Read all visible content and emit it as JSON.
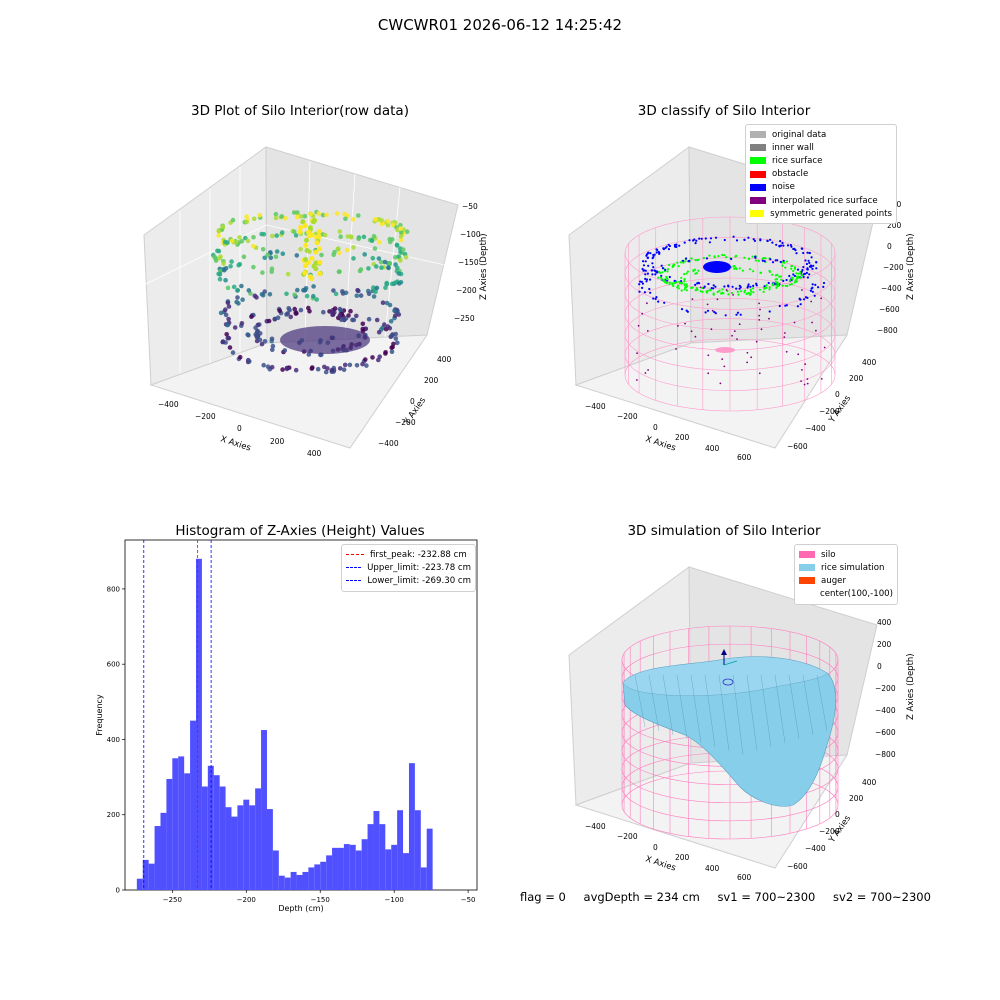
{
  "suptitle": "CWCWR01 2026-06-12 14:25:42",
  "chart_data": [
    {
      "type": "scatter",
      "projection": "3d",
      "title": "3D Plot of Silo Interior(row data)",
      "xlabel": "X Axies",
      "ylabel": "Y Axies",
      "zlabel": "Z Axies (Depth)",
      "xticks": [
        "−400",
        "−200",
        "0",
        "200",
        "400"
      ],
      "yticks": [
        "−400",
        "−200",
        "0",
        "200",
        "400"
      ],
      "zticks": [
        "−50",
        "−100",
        "−150",
        "−200",
        "−250"
      ],
      "zlim": [
        -270,
        -45
      ],
      "colormap": "viridis"
    },
    {
      "type": "scatter",
      "projection": "3d",
      "title": "3D classify of Silo Interior",
      "xlabel": "X Axies",
      "ylabel": "Y Axies",
      "zlabel": "Z Axies (Depth)",
      "xticks": [
        "−400",
        "−200",
        "0",
        "200",
        "400",
        "600"
      ],
      "yticks": [
        "−600",
        "−400",
        "−200",
        "0",
        "200",
        "400"
      ],
      "zticks": [
        "400",
        "200",
        "0",
        "−200",
        "−400",
        "−600",
        "−800"
      ],
      "legend_position": "upper-right",
      "legend": [
        {
          "label": "original data",
          "color": "#b0b0b0"
        },
        {
          "label": "inner wall",
          "color": "#808080"
        },
        {
          "label": "rice surface",
          "color": "#00ff00"
        },
        {
          "label": "obstacle",
          "color": "#ff0000"
        },
        {
          "label": "noise",
          "color": "#0000ff"
        },
        {
          "label": "interpolated rice surface",
          "color": "#800080"
        },
        {
          "label": "symmetric generated points",
          "color": "#ffff00"
        }
      ]
    },
    {
      "type": "bar",
      "title": "Histogram of Z-Axies (Height) Values",
      "xlabel": "Depth (cm)",
      "ylabel": "Frequency",
      "xlim": [
        -282,
        -44
      ],
      "ylim": [
        0,
        930
      ],
      "xticks": [
        -250,
        -200,
        -150,
        -100,
        -50
      ],
      "yticks": [
        0,
        200,
        400,
        600,
        800
      ],
      "bar_color": "#5050ff",
      "bin_width": 4.0,
      "bins_start": -274,
      "values": [
        30,
        80,
        70,
        170,
        205,
        295,
        350,
        355,
        310,
        450,
        880,
        275,
        330,
        305,
        275,
        220,
        195,
        225,
        240,
        225,
        270,
        425,
        215,
        105,
        38,
        33,
        48,
        40,
        48,
        60,
        68,
        75,
        92,
        112,
        112,
        122,
        120,
        105,
        135,
        175,
        210,
        175,
        108,
        120,
        212,
        98,
        337,
        212,
        60,
        163
      ],
      "lines": [
        {
          "label": "first_peak: -232.88 cm",
          "x": -232.88,
          "color": "#ff0000"
        },
        {
          "label": "Upper_limit: -223.78 cm",
          "x": -223.78,
          "color": "#0000ff"
        },
        {
          "label": "Lower_limit: -269.30 cm",
          "x": -269.3,
          "color": "#0000ff"
        }
      ],
      "legend_position": "upper-right"
    },
    {
      "type": "surface",
      "projection": "3d",
      "title": "3D simulation of Silo Interior",
      "xlabel": "X Axies",
      "ylabel": "Y Axies",
      "zlabel": "Z Axies (Depth)",
      "xticks": [
        "−400",
        "−200",
        "0",
        "200",
        "400",
        "600"
      ],
      "yticks": [
        "−600",
        "−400",
        "−200",
        "0",
        "200",
        "400"
      ],
      "zticks": [
        "400",
        "200",
        "0",
        "−200",
        "−400",
        "−600",
        "−800"
      ],
      "legend_position": "upper-right",
      "legend": [
        {
          "label": "silo",
          "color": "#ff69b4"
        },
        {
          "label": "rice simulation",
          "color": "#87ceeb"
        },
        {
          "label": "auger",
          "color": "#ff4500"
        },
        {
          "label": "center(100,-100)",
          "color": "#ffffff"
        }
      ]
    }
  ],
  "status": {
    "flag": "flag = 0",
    "avg_depth": "avgDepth = 234 cm",
    "sv1": "sv1 = 700~2300",
    "sv2": "sv2 = 700~2300"
  }
}
